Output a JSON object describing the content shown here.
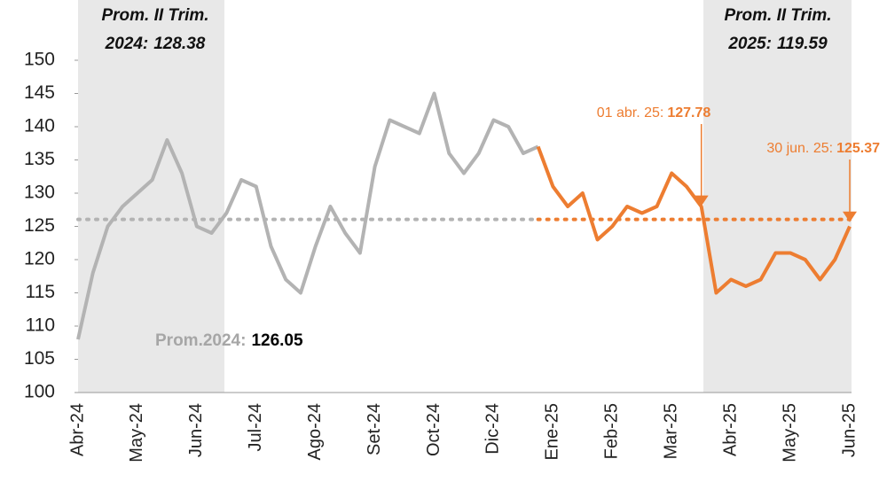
{
  "chart_data": {
    "type": "line",
    "categories": [
      "Abr-24",
      null,
      null,
      null,
      "May-24",
      null,
      null,
      null,
      "Jun-24",
      null,
      null,
      null,
      "Jul-24",
      null,
      null,
      null,
      "Ago-24",
      null,
      null,
      null,
      "Set-24",
      null,
      null,
      null,
      "Oct-24",
      null,
      null,
      null,
      "Dic-24",
      null,
      null,
      null,
      "Ene-25",
      null,
      null,
      null,
      "Feb-25",
      null,
      null,
      null,
      "Mar-25",
      null,
      null,
      null,
      "Abr-25",
      null,
      null,
      null,
      "May-25",
      null,
      null,
      null,
      "Jun-25"
    ],
    "series": [
      {
        "color": "#b3b3b3",
        "values": [
          108,
          118,
          125,
          128,
          130,
          132,
          138,
          133,
          125,
          124,
          127,
          132,
          131,
          122,
          117,
          115,
          122,
          128,
          124,
          121,
          134,
          141,
          140,
          139,
          145,
          136,
          133,
          136,
          141,
          140,
          136,
          137,
          null,
          null,
          null,
          null,
          null,
          null,
          null,
          null,
          null,
          null,
          null,
          null,
          null,
          null,
          null,
          null,
          null,
          null,
          null,
          null,
          null
        ]
      },
      {
        "color": "#ed7d31",
        "values": [
          null,
          null,
          null,
          null,
          null,
          null,
          null,
          null,
          null,
          null,
          null,
          null,
          null,
          null,
          null,
          null,
          null,
          null,
          null,
          null,
          null,
          null,
          null,
          null,
          null,
          null,
          null,
          null,
          null,
          null,
          null,
          137,
          131,
          128,
          130,
          123,
          125,
          128,
          127,
          128,
          133,
          131,
          128,
          115,
          117,
          116,
          117,
          121,
          121,
          120,
          117,
          120,
          125
        ]
      }
    ],
    "ylim": [
      100,
      150
    ],
    "yticks": [
      100,
      105,
      110,
      115,
      120,
      125,
      130,
      135,
      140,
      145,
      150
    ],
    "average": {
      "label": "Prom.2024:",
      "value": 126.05
    },
    "quarter_boxes": [
      {
        "line1": "Prom. II Trim.",
        "line2": "2024:",
        "value": 128.38
      },
      {
        "line1": "Prom. II Trim.",
        "line2": "2025:",
        "value": 119.59
      }
    ],
    "annotations": [
      {
        "label": "01 abr. 25:",
        "value": 127.78
      },
      {
        "label": "30 jun. 25:",
        "value": 125.37
      }
    ]
  }
}
